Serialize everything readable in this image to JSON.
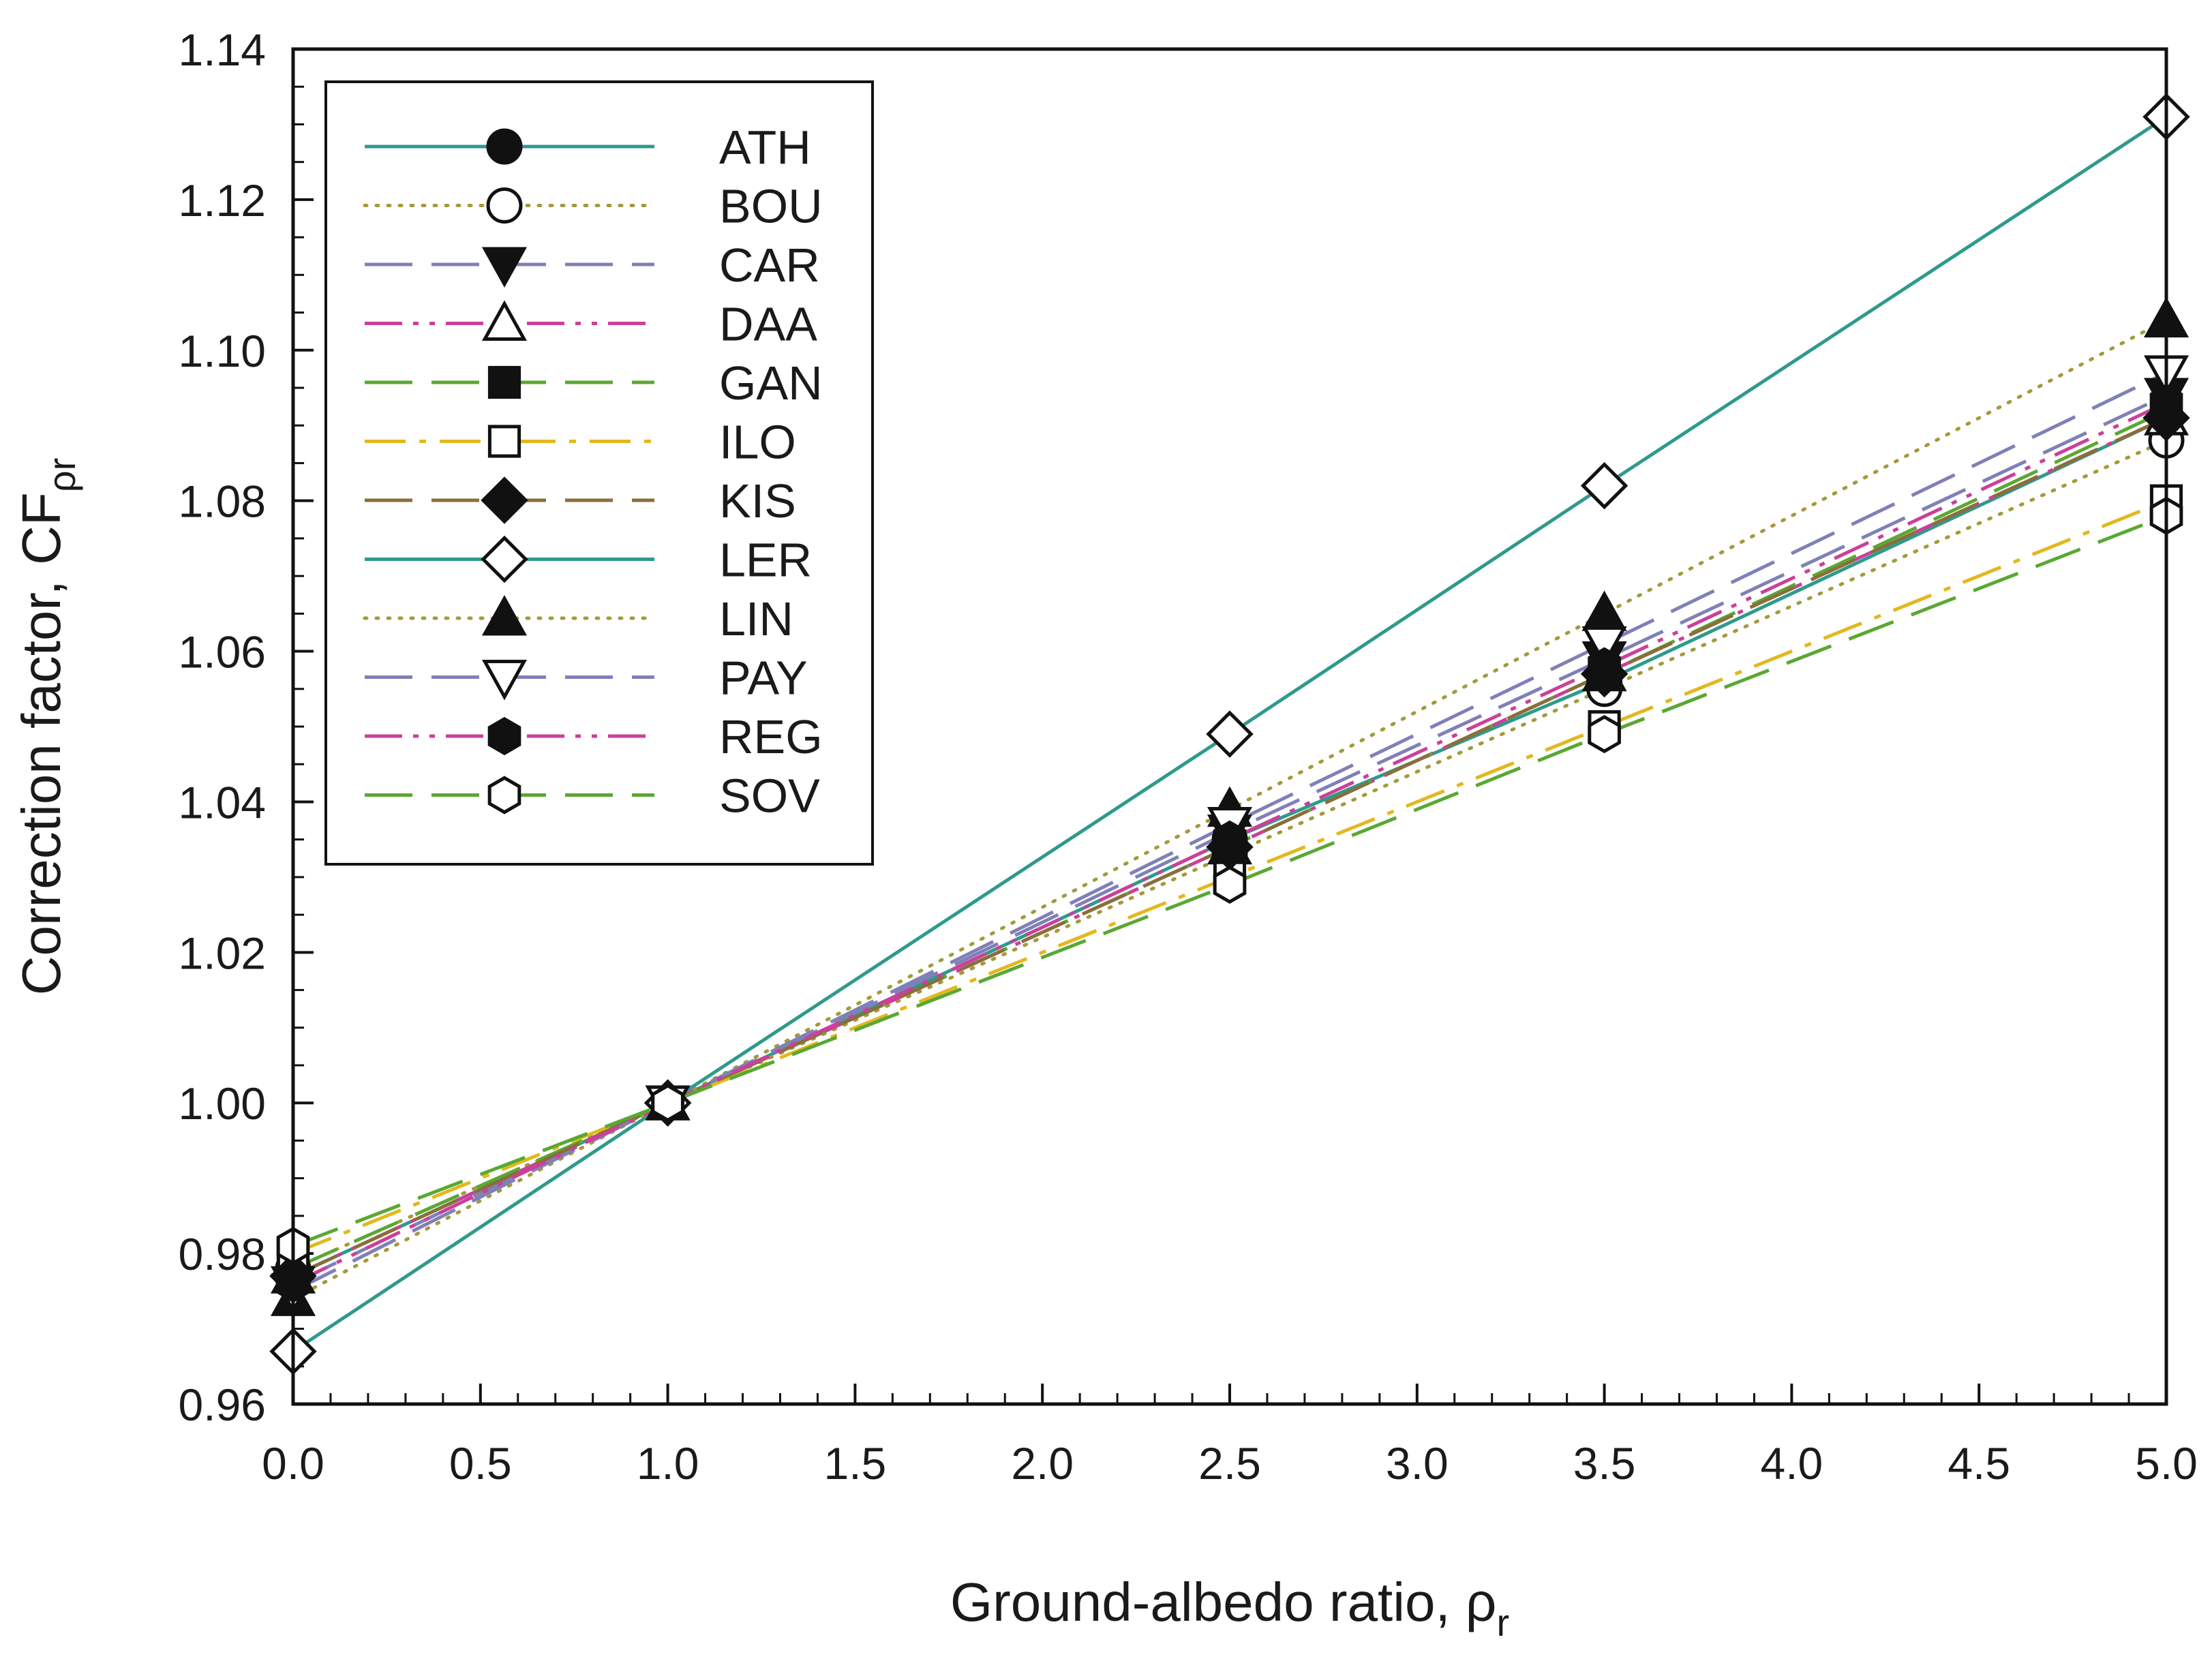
{
  "chart_data": {
    "type": "line",
    "title": "",
    "xlabel": "Ground-albedo ratio, ρ",
    "xlabel_sub": "r",
    "ylabel": "Correction factor, CF",
    "ylabel_sub": "ρr",
    "xlim": [
      0,
      5
    ],
    "ylim": [
      0.96,
      1.14
    ],
    "x_ticks": [
      0.0,
      0.5,
      1.0,
      1.5,
      2.0,
      2.5,
      3.0,
      3.5,
      4.0,
      4.5,
      5.0
    ],
    "x_tick_labels": [
      "0.0",
      "0.5",
      "1.0",
      "1.5",
      "2.0",
      "2.5",
      "3.0",
      "3.5",
      "4.0",
      "4.5",
      "5.0"
    ],
    "y_ticks": [
      0.96,
      0.98,
      1.0,
      1.02,
      1.04,
      1.06,
      1.08,
      1.1,
      1.12,
      1.14
    ],
    "y_tick_labels": [
      "0.96",
      "0.98",
      "1.00",
      "1.02",
      "1.04",
      "1.06",
      "1.08",
      "1.10",
      "1.12",
      "1.14"
    ],
    "grid": false,
    "legend_position": "top-left",
    "x": [
      0.0,
      1.0,
      2.5,
      3.5,
      5.0
    ],
    "series": [
      {
        "name": "ATH",
        "color": "#2e9a8c",
        "dash": "solid",
        "marker": "circle",
        "filled": true,
        "values": [
          0.977,
          1.0,
          1.035,
          1.056,
          1.091
        ]
      },
      {
        "name": "BOU",
        "color": "#a39a3a",
        "dash": "dotted",
        "marker": "circle",
        "filled": false,
        "values": [
          0.978,
          1.0,
          1.033,
          1.055,
          1.088
        ]
      },
      {
        "name": "CAR",
        "color": "#8080b8",
        "dash": "longdash",
        "marker": "triangle-down",
        "filled": true,
        "values": [
          0.976,
          1.0,
          1.036,
          1.059,
          1.094
        ]
      },
      {
        "name": "DAA",
        "color": "#cc3f9a",
        "dash": "dashdotdot",
        "marker": "triangle-up",
        "filled": false,
        "values": [
          0.977,
          1.0,
          1.034,
          1.057,
          1.091
        ]
      },
      {
        "name": "GAN",
        "color": "#5aa832",
        "dash": "longdash",
        "marker": "square",
        "filled": true,
        "values": [
          0.978,
          1.0,
          1.034,
          1.057,
          1.092
        ]
      },
      {
        "name": "ILO",
        "color": "#e3b81e",
        "dash": "dashdot",
        "marker": "square",
        "filled": false,
        "values": [
          0.98,
          1.0,
          1.03,
          1.05,
          1.08
        ]
      },
      {
        "name": "KIS",
        "color": "#8a6e3a",
        "dash": "longdash",
        "marker": "diamond",
        "filled": true,
        "values": [
          0.977,
          1.0,
          1.034,
          1.057,
          1.091
        ]
      },
      {
        "name": "LER",
        "color": "#2e9a8c",
        "dash": "solid",
        "marker": "diamond",
        "filled": false,
        "values": [
          0.967,
          1.0,
          1.049,
          1.082,
          1.131
        ]
      },
      {
        "name": "LIN",
        "color": "#a39a3a",
        "dash": "dotted",
        "marker": "triangle-up",
        "filled": true,
        "values": [
          0.974,
          1.0,
          1.039,
          1.065,
          1.104
        ]
      },
      {
        "name": "PAY",
        "color": "#8080b8",
        "dash": "longdash",
        "marker": "triangle-down",
        "filled": false,
        "values": [
          0.975,
          1.0,
          1.037,
          1.061,
          1.097
        ]
      },
      {
        "name": "REG",
        "color": "#cc3f9a",
        "dash": "dashdotdot",
        "marker": "hexagon",
        "filled": true,
        "values": [
          0.976,
          1.0,
          1.035,
          1.058,
          1.093
        ]
      },
      {
        "name": "SOV",
        "color": "#5aa832",
        "dash": "longdash",
        "marker": "hexagon",
        "filled": false,
        "values": [
          0.981,
          1.0,
          1.029,
          1.049,
          1.078
        ]
      }
    ]
  }
}
